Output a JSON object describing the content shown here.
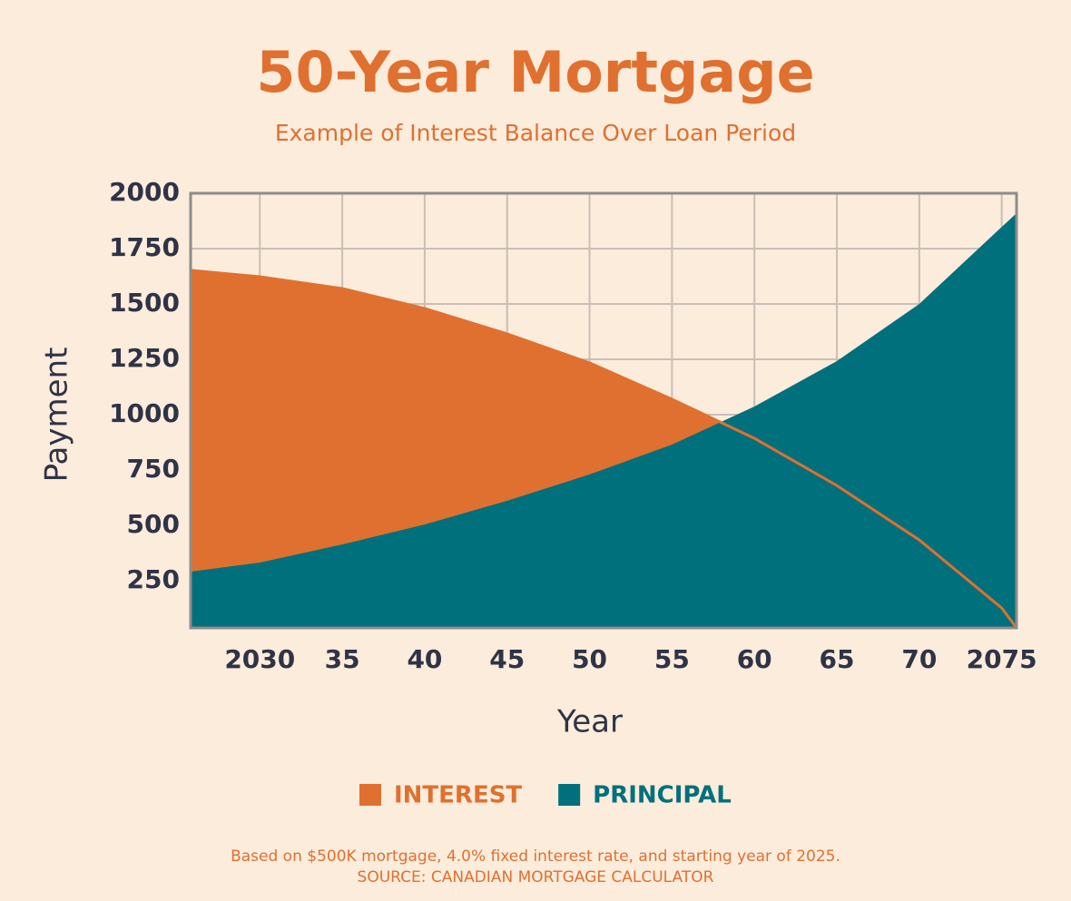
{
  "chart_data": {
    "type": "area",
    "title": "50-Year Mortgage",
    "subtitle": "Example of Interest Balance Over Loan Period",
    "x_label": "Year",
    "y_label": "Payment",
    "x": [
      2025.8,
      2030,
      2035,
      2040,
      2045,
      2050,
      2055,
      2060,
      2065,
      2070,
      2075,
      2075.9
    ],
    "series": [
      {
        "name": "INTEREST",
        "color": "#e0702f",
        "values": [
          1652,
          1623,
          1570,
          1480,
          1365,
          1234,
          1070,
          893,
          680,
          434,
          127,
          37
        ]
      },
      {
        "name": "PRINCIPAL",
        "color": "#00707c",
        "values": [
          291,
          332,
          414,
          504,
          611,
          730,
          865,
          1037,
          1242,
          1500,
          1848,
          1910
        ]
      }
    ],
    "xlim": [
      2025.8,
      2075.9
    ],
    "xticks": [
      2030,
      {
        "value": 2035,
        "label": "35"
      },
      {
        "value": 2040,
        "label": "40"
      },
      {
        "value": 2045,
        "label": "45"
      },
      {
        "value": 2050,
        "label": "50"
      },
      {
        "value": 2055,
        "label": "55"
      },
      {
        "value": 2060,
        "label": "60"
      },
      {
        "value": 2065,
        "label": "65"
      },
      {
        "value": 2070,
        "label": "70"
      },
      2075
    ],
    "ylim": [
      37,
      2000
    ],
    "yticks": [
      250,
      500,
      750,
      1000,
      1250,
      1500,
      1750,
      2000
    ],
    "grid": true,
    "legend": "bottom",
    "notes": [
      "Based on $500K mortgage, 4.0% fixed interest rate, and starting year of 2025.",
      "SOURCE: CANADIAN MORTGAGE CALCULATOR"
    ]
  }
}
